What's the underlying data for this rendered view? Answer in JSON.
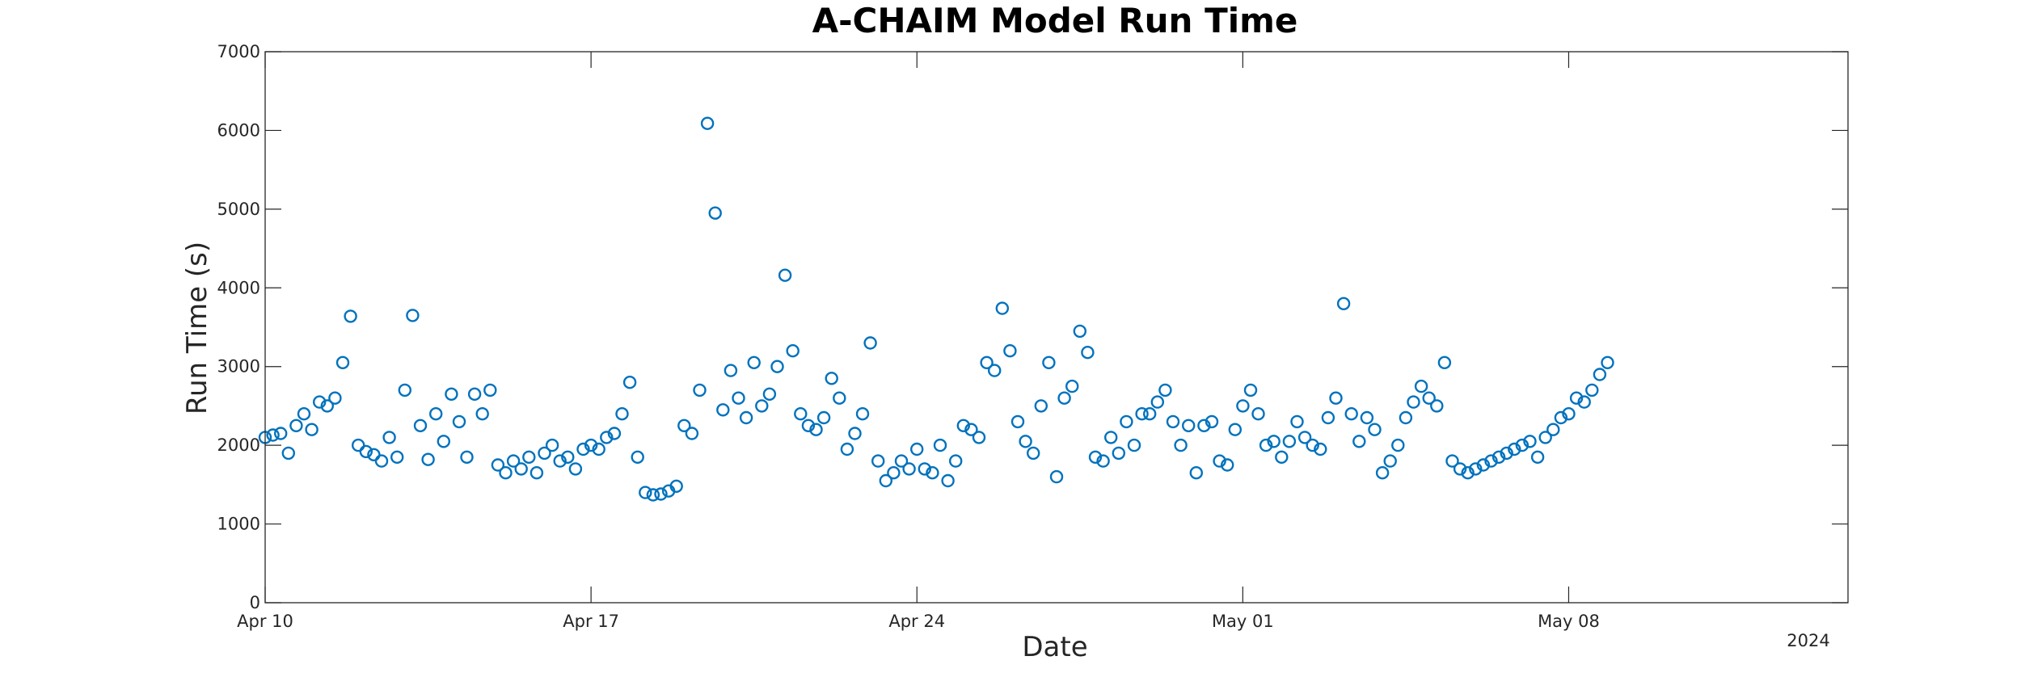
{
  "chart_data": {
    "type": "scatter",
    "title": "A-CHAIM Model Run Time",
    "xlabel": "Date",
    "ylabel": "Run Time (s)",
    "year_label": "2024",
    "x_axis": {
      "type": "date",
      "range": [
        "2024-04-10",
        "2024-05-14"
      ],
      "ticks": [
        {
          "date": "2024-04-10",
          "label": "Apr 10"
        },
        {
          "date": "2024-04-17",
          "label": "Apr 17"
        },
        {
          "date": "2024-04-24",
          "label": "Apr 24"
        },
        {
          "date": "2024-05-01",
          "label": "May 01"
        },
        {
          "date": "2024-05-08",
          "label": "May 08"
        }
      ]
    },
    "ylim": [
      0,
      7000
    ],
    "yticks": [
      0,
      1000,
      2000,
      3000,
      4000,
      5000,
      6000,
      7000
    ],
    "grid": false,
    "marker": "circle-open",
    "color": "#0072BD",
    "series": [
      {
        "points": [
          [
            "2024-04-10T00:00",
            2100
          ],
          [
            "2024-04-10T04:00",
            2130
          ],
          [
            "2024-04-10T08:00",
            2150
          ],
          [
            "2024-04-10T12:00",
            1900
          ],
          [
            "2024-04-10T16:00",
            2250
          ],
          [
            "2024-04-10T20:00",
            2400
          ],
          [
            "2024-04-11T00:00",
            2200
          ],
          [
            "2024-04-11T04:00",
            2550
          ],
          [
            "2024-04-11T08:00",
            2500
          ],
          [
            "2024-04-11T12:00",
            2600
          ],
          [
            "2024-04-11T16:00",
            3050
          ],
          [
            "2024-04-11T20:00",
            3640
          ],
          [
            "2024-04-12T00:00",
            2000
          ],
          [
            "2024-04-12T04:00",
            1920
          ],
          [
            "2024-04-12T08:00",
            1880
          ],
          [
            "2024-04-12T12:00",
            1800
          ],
          [
            "2024-04-12T16:00",
            2100
          ],
          [
            "2024-04-12T20:00",
            1850
          ],
          [
            "2024-04-13T00:00",
            2700
          ],
          [
            "2024-04-13T04:00",
            3650
          ],
          [
            "2024-04-13T08:00",
            2250
          ],
          [
            "2024-04-13T12:00",
            1820
          ],
          [
            "2024-04-13T16:00",
            2400
          ],
          [
            "2024-04-13T20:00",
            2050
          ],
          [
            "2024-04-14T00:00",
            2650
          ],
          [
            "2024-04-14T04:00",
            2300
          ],
          [
            "2024-04-14T08:00",
            1850
          ],
          [
            "2024-04-14T12:00",
            2650
          ],
          [
            "2024-04-14T16:00",
            2400
          ],
          [
            "2024-04-14T20:00",
            2700
          ],
          [
            "2024-04-15T00:00",
            1750
          ],
          [
            "2024-04-15T04:00",
            1650
          ],
          [
            "2024-04-15T08:00",
            1800
          ],
          [
            "2024-04-15T12:00",
            1700
          ],
          [
            "2024-04-15T16:00",
            1850
          ],
          [
            "2024-04-15T20:00",
            1650
          ],
          [
            "2024-04-16T00:00",
            1900
          ],
          [
            "2024-04-16T04:00",
            2000
          ],
          [
            "2024-04-16T08:00",
            1800
          ],
          [
            "2024-04-16T12:00",
            1850
          ],
          [
            "2024-04-16T16:00",
            1700
          ],
          [
            "2024-04-16T20:00",
            1950
          ],
          [
            "2024-04-17T00:00",
            2000
          ],
          [
            "2024-04-17T04:00",
            1950
          ],
          [
            "2024-04-17T08:00",
            2100
          ],
          [
            "2024-04-17T12:00",
            2150
          ],
          [
            "2024-04-17T16:00",
            2400
          ],
          [
            "2024-04-17T20:00",
            2800
          ],
          [
            "2024-04-18T00:00",
            1850
          ],
          [
            "2024-04-18T04:00",
            1400
          ],
          [
            "2024-04-18T08:00",
            1370
          ],
          [
            "2024-04-18T12:00",
            1380
          ],
          [
            "2024-04-18T16:00",
            1420
          ],
          [
            "2024-04-18T20:00",
            1480
          ],
          [
            "2024-04-19T00:00",
            2250
          ],
          [
            "2024-04-19T04:00",
            2150
          ],
          [
            "2024-04-19T08:00",
            2700
          ],
          [
            "2024-04-19T12:00",
            6090
          ],
          [
            "2024-04-19T16:00",
            4950
          ],
          [
            "2024-04-19T20:00",
            2450
          ],
          [
            "2024-04-20T00:00",
            2950
          ],
          [
            "2024-04-20T04:00",
            2600
          ],
          [
            "2024-04-20T08:00",
            2350
          ],
          [
            "2024-04-20T12:00",
            3050
          ],
          [
            "2024-04-20T16:00",
            2500
          ],
          [
            "2024-04-20T20:00",
            2650
          ],
          [
            "2024-04-21T00:00",
            3000
          ],
          [
            "2024-04-21T04:00",
            4160
          ],
          [
            "2024-04-21T08:00",
            3200
          ],
          [
            "2024-04-21T12:00",
            2400
          ],
          [
            "2024-04-21T16:00",
            2250
          ],
          [
            "2024-04-21T20:00",
            2200
          ],
          [
            "2024-04-22T00:00",
            2350
          ],
          [
            "2024-04-22T04:00",
            2850
          ],
          [
            "2024-04-22T08:00",
            2600
          ],
          [
            "2024-04-22T12:00",
            1950
          ],
          [
            "2024-04-22T16:00",
            2150
          ],
          [
            "2024-04-22T20:00",
            2400
          ],
          [
            "2024-04-23T00:00",
            3300
          ],
          [
            "2024-04-23T04:00",
            1800
          ],
          [
            "2024-04-23T08:00",
            1550
          ],
          [
            "2024-04-23T12:00",
            1650
          ],
          [
            "2024-04-23T16:00",
            1800
          ],
          [
            "2024-04-23T20:00",
            1700
          ],
          [
            "2024-04-24T00:00",
            1950
          ],
          [
            "2024-04-24T04:00",
            1700
          ],
          [
            "2024-04-24T08:00",
            1650
          ],
          [
            "2024-04-24T12:00",
            2000
          ],
          [
            "2024-04-24T16:00",
            1550
          ],
          [
            "2024-04-24T20:00",
            1800
          ],
          [
            "2024-04-25T00:00",
            2250
          ],
          [
            "2024-04-25T04:00",
            2200
          ],
          [
            "2024-04-25T08:00",
            2100
          ],
          [
            "2024-04-25T12:00",
            3050
          ],
          [
            "2024-04-25T16:00",
            2950
          ],
          [
            "2024-04-25T20:00",
            3740
          ],
          [
            "2024-04-26T00:00",
            3200
          ],
          [
            "2024-04-26T04:00",
            2300
          ],
          [
            "2024-04-26T08:00",
            2050
          ],
          [
            "2024-04-26T12:00",
            1900
          ],
          [
            "2024-04-26T16:00",
            2500
          ],
          [
            "2024-04-26T20:00",
            3050
          ],
          [
            "2024-04-27T00:00",
            1600
          ],
          [
            "2024-04-27T04:00",
            2600
          ],
          [
            "2024-04-27T08:00",
            2750
          ],
          [
            "2024-04-27T12:00",
            3450
          ],
          [
            "2024-04-27T16:00",
            3180
          ],
          [
            "2024-04-27T20:00",
            1850
          ],
          [
            "2024-04-28T00:00",
            1800
          ],
          [
            "2024-04-28T04:00",
            2100
          ],
          [
            "2024-04-28T08:00",
            1900
          ],
          [
            "2024-04-28T12:00",
            2300
          ],
          [
            "2024-04-28T16:00",
            2000
          ],
          [
            "2024-04-28T20:00",
            2400
          ],
          [
            "2024-04-29T00:00",
            2400
          ],
          [
            "2024-04-29T04:00",
            2550
          ],
          [
            "2024-04-29T08:00",
            2700
          ],
          [
            "2024-04-29T12:00",
            2300
          ],
          [
            "2024-04-29T16:00",
            2000
          ],
          [
            "2024-04-29T20:00",
            2250
          ],
          [
            "2024-04-30T00:00",
            1650
          ],
          [
            "2024-04-30T04:00",
            2250
          ],
          [
            "2024-04-30T08:00",
            2300
          ],
          [
            "2024-04-30T12:00",
            1800
          ],
          [
            "2024-04-30T16:00",
            1750
          ],
          [
            "2024-04-30T20:00",
            2200
          ],
          [
            "2024-05-01T00:00",
            2500
          ],
          [
            "2024-05-01T04:00",
            2700
          ],
          [
            "2024-05-01T08:00",
            2400
          ],
          [
            "2024-05-01T12:00",
            2000
          ],
          [
            "2024-05-01T16:00",
            2050
          ],
          [
            "2024-05-01T20:00",
            1850
          ],
          [
            "2024-05-02T00:00",
            2050
          ],
          [
            "2024-05-02T04:00",
            2300
          ],
          [
            "2024-05-02T08:00",
            2100
          ],
          [
            "2024-05-02T12:00",
            2000
          ],
          [
            "2024-05-02T16:00",
            1950
          ],
          [
            "2024-05-02T20:00",
            2350
          ],
          [
            "2024-05-03T00:00",
            2600
          ],
          [
            "2024-05-03T04:00",
            3800
          ],
          [
            "2024-05-03T08:00",
            2400
          ],
          [
            "2024-05-03T12:00",
            2050
          ],
          [
            "2024-05-03T16:00",
            2350
          ],
          [
            "2024-05-03T20:00",
            2200
          ],
          [
            "2024-05-04T00:00",
            1650
          ],
          [
            "2024-05-04T04:00",
            1800
          ],
          [
            "2024-05-04T08:00",
            2000
          ],
          [
            "2024-05-04T12:00",
            2350
          ],
          [
            "2024-05-04T16:00",
            2550
          ],
          [
            "2024-05-04T20:00",
            2750
          ],
          [
            "2024-05-05T00:00",
            2600
          ],
          [
            "2024-05-05T04:00",
            2500
          ],
          [
            "2024-05-05T08:00",
            3050
          ],
          [
            "2024-05-05T12:00",
            1800
          ],
          [
            "2024-05-05T16:00",
            1700
          ],
          [
            "2024-05-05T20:00",
            1650
          ],
          [
            "2024-05-06T00:00",
            1700
          ],
          [
            "2024-05-06T04:00",
            1750
          ],
          [
            "2024-05-06T08:00",
            1800
          ],
          [
            "2024-05-06T12:00",
            1850
          ],
          [
            "2024-05-06T16:00",
            1900
          ],
          [
            "2024-05-06T20:00",
            1950
          ],
          [
            "2024-05-07T00:00",
            2000
          ],
          [
            "2024-05-07T04:00",
            2050
          ],
          [
            "2024-05-07T08:00",
            1850
          ],
          [
            "2024-05-07T12:00",
            2100
          ],
          [
            "2024-05-07T16:00",
            2200
          ],
          [
            "2024-05-07T20:00",
            2350
          ],
          [
            "2024-05-08T00:00",
            2400
          ],
          [
            "2024-05-08T04:00",
            2600
          ],
          [
            "2024-05-08T08:00",
            2550
          ],
          [
            "2024-05-08T12:00",
            2700
          ],
          [
            "2024-05-08T16:00",
            2900
          ],
          [
            "2024-05-08T20:00",
            3050
          ]
        ]
      }
    ]
  }
}
